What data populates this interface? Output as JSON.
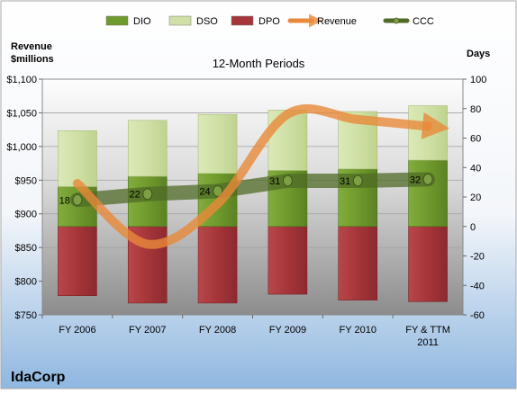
{
  "chart_data": {
    "type": "bar",
    "title": "12-Month Periods",
    "company": "IdaCorp",
    "ylabel_left": "Revenue\n$millions",
    "ylabel_right": "Days",
    "categories": [
      "FY 2006",
      "FY 2007",
      "FY 2008",
      "FY 2009",
      "FY 2010",
      "FY & TTM 2011"
    ],
    "left_axis": {
      "min": 750,
      "max": 1100,
      "ticks": [
        "$750",
        "$800",
        "$850",
        "$900",
        "$950",
        "$1,000",
        "$1,050",
        "$1,100"
      ]
    },
    "right_axis": {
      "min": -60,
      "max": 100,
      "ticks": [
        "-60",
        "-40",
        "-20",
        "0",
        "20",
        "40",
        "60",
        "80",
        "100"
      ]
    },
    "legend": {
      "position": "top",
      "items": [
        {
          "key": "dio",
          "label": "DIO"
        },
        {
          "key": "dso",
          "label": "DSO"
        },
        {
          "key": "dpo",
          "label": "DPO"
        },
        {
          "key": "revenue",
          "label": "Revenue"
        },
        {
          "key": "ccc",
          "label": "CCC"
        }
      ]
    },
    "series": [
      {
        "name": "DPO",
        "axis": "right",
        "stack": "negative",
        "values": [
          -47,
          -52,
          -52,
          -46,
          -50,
          -51
        ]
      },
      {
        "name": "DIO",
        "axis": "right",
        "stack": "positive",
        "values": [
          27,
          34,
          36,
          38,
          39,
          45
        ]
      },
      {
        "name": "DSO",
        "axis": "right",
        "stack": "positive",
        "values": [
          38,
          38,
          40,
          41,
          39,
          37
        ]
      },
      {
        "name": "Revenue",
        "axis": "left",
        "type": "line",
        "values": [
          945,
          855,
          915,
          1048,
          1040,
          1030
        ]
      },
      {
        "name": "CCC",
        "axis": "right",
        "type": "line",
        "values": [
          18,
          22,
          24,
          31,
          31,
          32
        ],
        "labels": [
          "18",
          "22",
          "24",
          "31",
          "31",
          "32"
        ]
      }
    ],
    "colors": {
      "dio": "#6f9a2d",
      "dso": "#cfe0a6",
      "dpo": "#a6353a",
      "revenue": "#e8893a",
      "ccc": "#4f6b27",
      "background_top": "#ffffff",
      "background_bottom": "#8fb7e0"
    },
    "grid": true
  }
}
